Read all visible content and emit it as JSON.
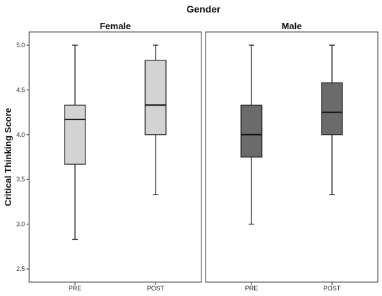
{
  "chart_data": {
    "type": "boxplot",
    "super_title": "Gender",
    "ylabel": "Critical Thinking Score",
    "ylim": [
      2.4,
      5.25
    ],
    "yticks": [
      "2.5",
      "3.0",
      "3.5",
      "4.0",
      "4.5",
      "5.0"
    ],
    "panels": [
      {
        "title": "Female",
        "color": "#d3d3d3",
        "boxes": [
          {
            "category": "PRE",
            "min": 2.83,
            "q1": 3.67,
            "median": 4.17,
            "q3": 4.33,
            "max": 5.0
          },
          {
            "category": "POST",
            "min": 3.33,
            "q1": 4.0,
            "median": 4.33,
            "q3": 4.83,
            "max": 5.0
          }
        ]
      },
      {
        "title": "Male",
        "color": "#6b6b6b",
        "boxes": [
          {
            "category": "PRE",
            "min": 3.0,
            "q1": 3.75,
            "median": 4.0,
            "q3": 4.33,
            "max": 5.0
          },
          {
            "category": "POST",
            "min": 3.33,
            "q1": 4.0,
            "median": 4.25,
            "q3": 4.58,
            "max": 5.0
          }
        ]
      }
    ]
  }
}
